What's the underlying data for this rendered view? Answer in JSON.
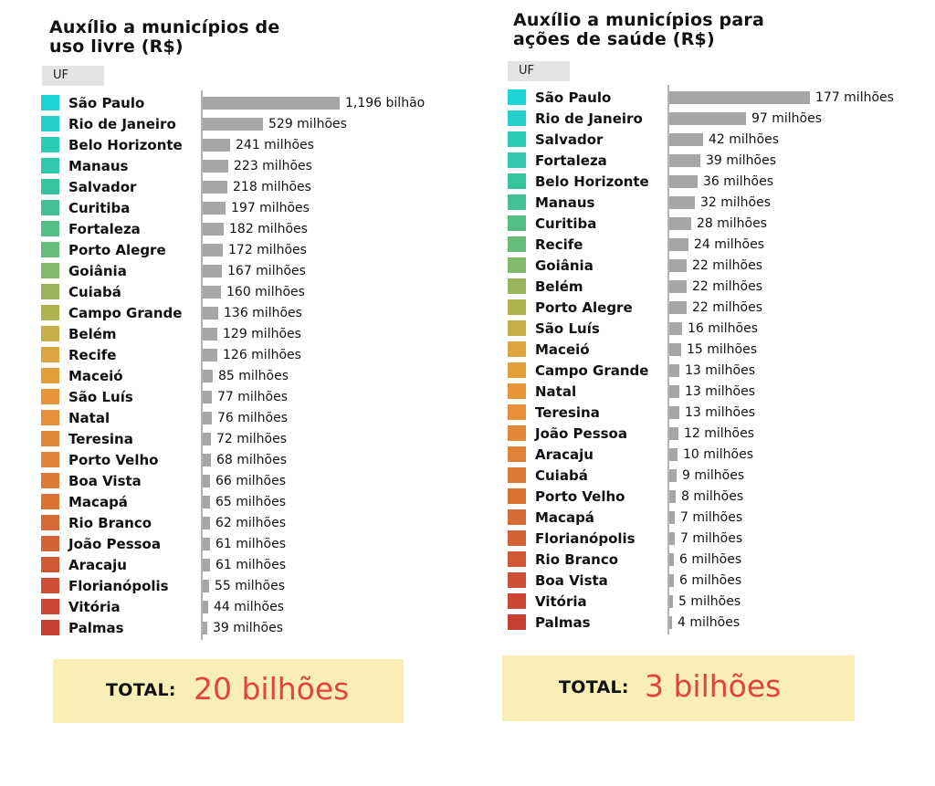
{
  "chart_data": [
    {
      "type": "bar",
      "orientation": "horizontal",
      "title": "Auxílio a municípios de uso livre (R$)",
      "column_header": "UF",
      "unit": "R$",
      "categories": [
        "São Paulo",
        "Rio de Janeiro",
        "Belo Horizonte",
        "Manaus",
        "Salvador",
        "Curitiba",
        "Fortaleza",
        "Porto Alegre",
        "Goiânia",
        "Cuiabá",
        "Campo Grande",
        "Belém",
        "Recife",
        "Maceió",
        "São Luís",
        "Natal",
        "Teresina",
        "Porto Velho",
        "Boa Vista",
        "Macapá",
        "Rio Branco",
        "João Pessoa",
        "Aracaju",
        "Florianópolis",
        "Vitória",
        "Palmas"
      ],
      "values": [
        1196,
        529,
        241,
        223,
        218,
        197,
        182,
        172,
        167,
        160,
        136,
        129,
        126,
        85,
        77,
        76,
        72,
        68,
        66,
        65,
        62,
        61,
        61,
        55,
        44,
        39
      ],
      "value_labels": [
        "1,196 bilhão",
        "529 milhões",
        "241 milhões",
        "223 milhões",
        "218 milhões",
        "197 milhões",
        "182 milhões",
        "172 milhões",
        "167 milhões",
        "160 milhões",
        "136 milhões",
        "129 milhões",
        "126 milhões",
        "85 milhões",
        "77 milhões",
        "76 milhões",
        "72 milhões",
        "68 milhões",
        "66 milhões",
        "65 milhões",
        "62 milhões",
        "61 milhões",
        "61 milhões",
        "55 milhões",
        "44 milhões",
        "39 milhões"
      ],
      "xlim": [
        0,
        1196
      ],
      "total_label": "TOTAL:",
      "total_value": "20 bilhões",
      "swatch_colors": [
        "#1dd3d6",
        "#22d0c9",
        "#2ccbba",
        "#31c7ad",
        "#37c39f",
        "#43c094",
        "#53bf87",
        "#66bd79",
        "#80b96a",
        "#98b55c",
        "#b0b14f",
        "#c7ae47",
        "#dca53f",
        "#e39d3b",
        "#e69639",
        "#e68f38",
        "#e28937",
        "#df8236",
        "#dc7a35",
        "#d97234",
        "#d66a34",
        "#d36234",
        "#d05934",
        "#cd5034",
        "#ca4734",
        "#c73f34"
      ]
    },
    {
      "type": "bar",
      "orientation": "horizontal",
      "title": "Auxílio a municípios para ações de saúde (R$)",
      "column_header": "UF",
      "unit": "R$",
      "categories": [
        "São Paulo",
        "Rio de Janeiro",
        "Salvador",
        "Fortaleza",
        "Belo Horizonte",
        "Manaus",
        "Curitiba",
        "Recife",
        "Goiânia",
        "Belém",
        "Porto Alegre",
        "São Luís",
        "Maceió",
        "Campo Grande",
        "Natal",
        "Teresina",
        "João Pessoa",
        "Aracaju",
        "Cuiabá",
        "Porto Velho",
        "Macapá",
        "Florianópolis",
        "Rio Branco",
        "Boa Vista",
        "Vitória",
        "Palmas"
      ],
      "values": [
        177,
        97,
        42,
        39,
        36,
        32,
        28,
        24,
        22,
        22,
        22,
        16,
        15,
        13,
        13,
        13,
        12,
        10,
        9,
        8,
        7,
        7,
        6,
        6,
        5,
        4
      ],
      "value_labels": [
        "177 milhões",
        "97 milhões",
        "42 milhões",
        "39 milhões",
        "36 milhões",
        "32 milhões",
        "28 milhões",
        "24 milhões",
        "22 milhões",
        "22 milhões",
        "22 milhões",
        "16 milhões",
        "15 milhões",
        "13 milhões",
        "13 milhões",
        "13 milhões",
        "12 milhões",
        "10 milhões",
        "9 milhões",
        "8 milhões",
        "7 milhões",
        "7 milhões",
        "6 milhões",
        "6 milhões",
        "5 milhões",
        "4 milhões"
      ],
      "xlim": [
        0,
        177
      ],
      "total_label": "TOTAL:",
      "total_value": "3 bilhões",
      "swatch_colors": [
        "#1dd3d6",
        "#22d0c9",
        "#2ccbba",
        "#31c7ad",
        "#37c39f",
        "#43c094",
        "#53bf87",
        "#66bd79",
        "#80b96a",
        "#98b55c",
        "#b0b14f",
        "#c7ae47",
        "#dca53f",
        "#e39d3b",
        "#e69639",
        "#e68f38",
        "#e28937",
        "#df8236",
        "#dc7a35",
        "#d97234",
        "#d66a34",
        "#d36234",
        "#d05934",
        "#cd5034",
        "#ca4734",
        "#c73f34"
      ]
    }
  ]
}
